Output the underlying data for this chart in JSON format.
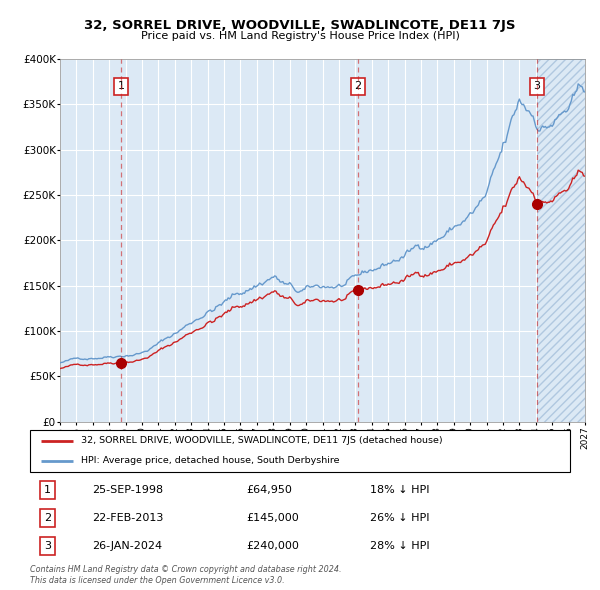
{
  "title": "32, SORREL DRIVE, WOODVILLE, SWADLINCOTE, DE11 7JS",
  "subtitle": "Price paid vs. HM Land Registry's House Price Index (HPI)",
  "sales": [
    {
      "date_yr": 1998.73,
      "price": 64950,
      "label": "1",
      "date_str": "25-SEP-1998",
      "price_str": "£64,950",
      "pct": "18% ↓ HPI"
    },
    {
      "date_yr": 2013.14,
      "price": 145000,
      "label": "2",
      "date_str": "22-FEB-2013",
      "price_str": "£145,000",
      "pct": "26% ↓ HPI"
    },
    {
      "date_yr": 2024.07,
      "price": 240000,
      "label": "3",
      "date_str": "26-JAN-2024",
      "price_str": "£240,000",
      "pct": "28% ↓ HPI"
    }
  ],
  "legend_line1": "32, SORREL DRIVE, WOODVILLE, SWADLINCOTE, DE11 7JS (detached house)",
  "legend_line2": "HPI: Average price, detached house, South Derbyshire",
  "footer": "Contains HM Land Registry data © Crown copyright and database right 2024.\nThis data is licensed under the Open Government Licence v3.0.",
  "ylim": [
    0,
    400000
  ],
  "xlim_start": 1995.0,
  "xlim_end": 2027.0,
  "bg_color": "#dce9f5",
  "hatch_color": "#b0c8e0",
  "grid_color": "#ffffff",
  "hpi_color": "#6699cc",
  "property_color": "#cc2222",
  "sale_marker_color": "#aa0000"
}
